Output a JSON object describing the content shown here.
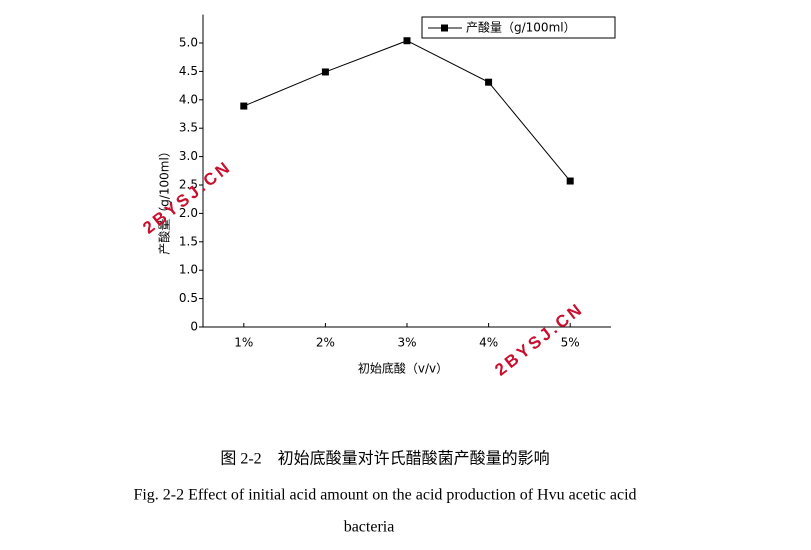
{
  "chart_data": {
    "type": "line",
    "y_label": "产酸量（g/100ml）",
    "x_label": "初始底酸（v/v）",
    "categories": [
      "1%",
      "2%",
      "3%",
      "4%",
      "5%"
    ],
    "series": [
      {
        "name": "产酸量（g/100ml）",
        "color": "#000000",
        "values": [
          3.89,
          4.49,
          5.04,
          4.31,
          2.57
        ]
      }
    ],
    "ylim": [
      0,
      5.5
    ],
    "yticks": [
      0,
      0.5,
      {
        "value": 1,
        "label": "1.0"
      },
      1.5,
      {
        "value": 2,
        "label": "2.0"
      },
      2.5,
      {
        "value": 3,
        "label": "3.0"
      },
      3.5,
      {
        "value": 4,
        "label": "4.0"
      },
      4.5,
      {
        "value": 5,
        "label": "5.0"
      }
    ],
    "legend": "top-right",
    "watermarks": [
      "2BYSJ.CN",
      "2BYSJ.CN"
    ],
    "caption": "图 2-2　初始底酸量对许氏醋酸菌产酸量的影响",
    "caption_en": [
      "Fig. 2-2 Effect of initial acid amount on the acid production of Hvu acetic acid",
      "bacteria"
    ]
  }
}
